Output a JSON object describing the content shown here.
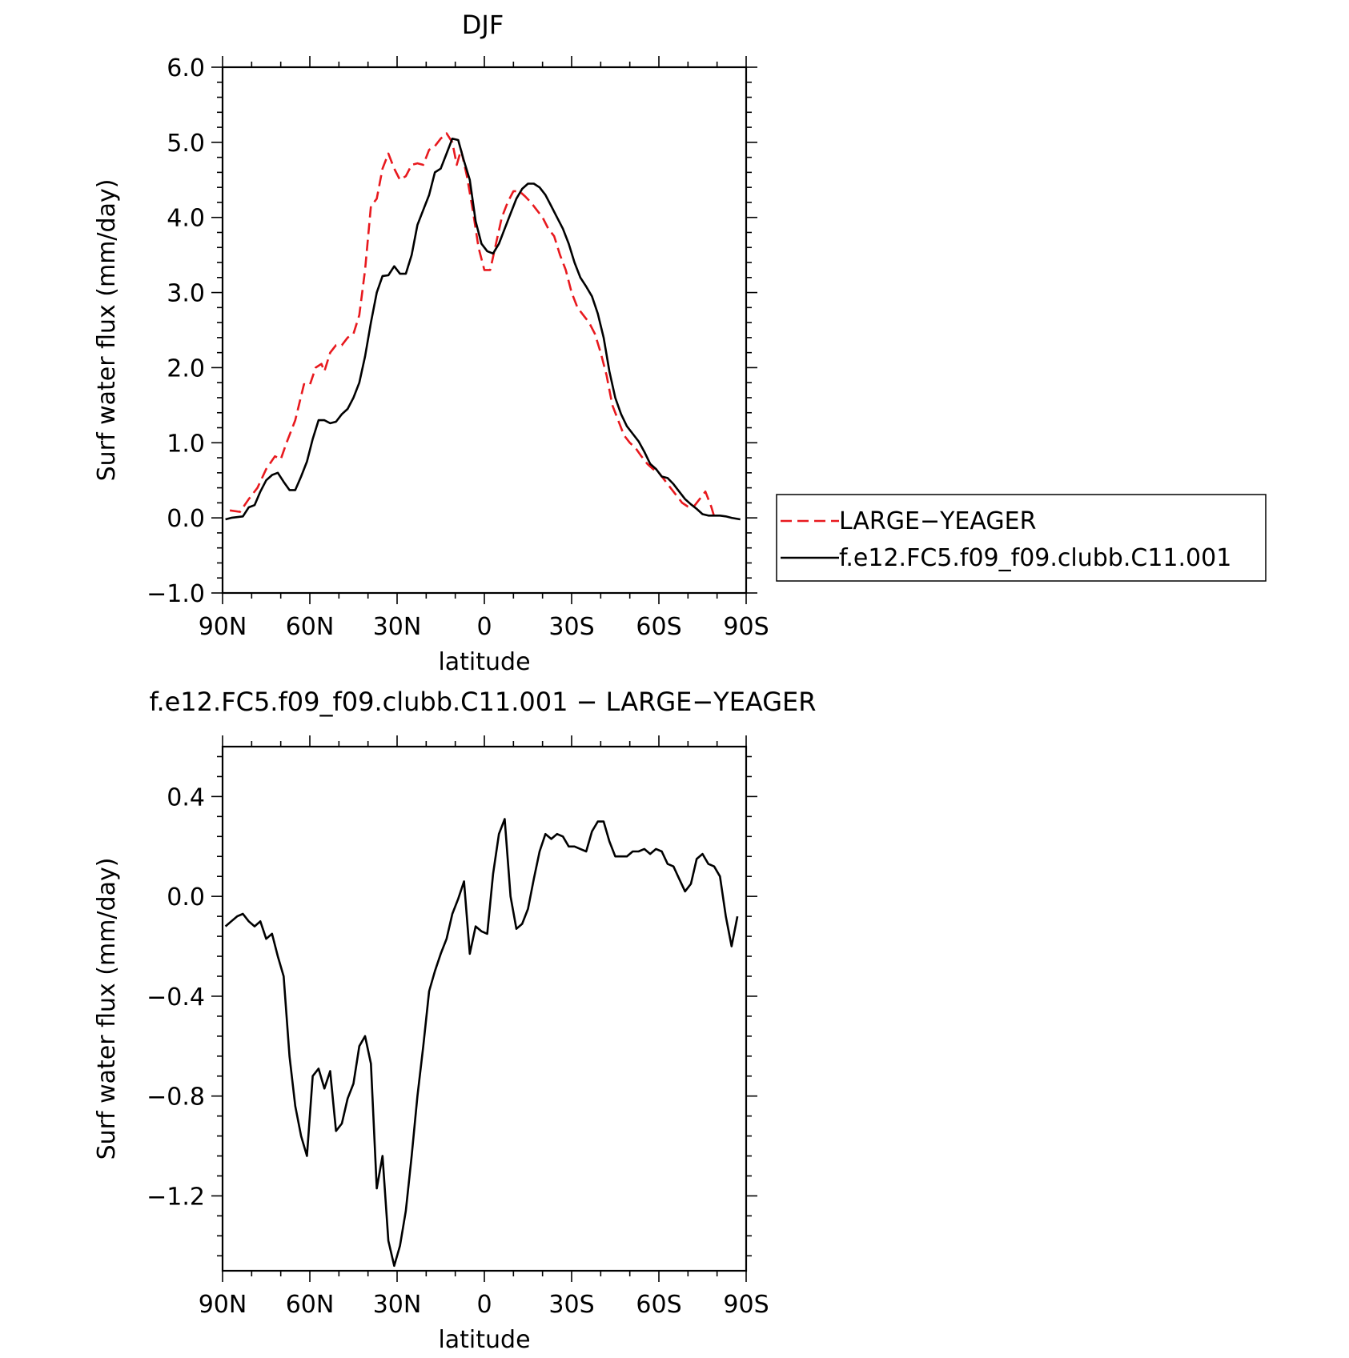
{
  "chart_data": [
    {
      "type": "line",
      "title": "DJF",
      "xlabel": "latitude",
      "ylabel": "Surf water flux (mm/day)",
      "xlim": [
        90,
        -90
      ],
      "ylim": [
        -1.0,
        6.0
      ],
      "x_ticks": [
        90,
        60,
        30,
        0,
        -30,
        -60,
        -90
      ],
      "x_tick_labels": [
        "90N",
        "60N",
        "30N",
        "0",
        "30S",
        "60S",
        "90S"
      ],
      "y_ticks": [
        -1,
        0,
        1,
        2,
        3,
        4,
        5,
        6
      ],
      "y_tick_labels": [
        "−1.0",
        "0.0",
        "1.0",
        "2.0",
        "3.0",
        "4.0",
        "5.0",
        "6.0"
      ],
      "legend_placement": "right",
      "series": [
        {
          "name": "LARGE−YEAGER",
          "color": "#e8191e",
          "dash": "dashed",
          "points": [
            [
              87.5,
              0.1
            ],
            [
              84,
              0.08
            ],
            [
              81,
              0.25
            ],
            [
              78,
              0.4
            ],
            [
              75,
              0.65
            ],
            [
              72,
              0.82
            ],
            [
              70,
              0.78
            ],
            [
              68,
              1.0
            ],
            [
              65,
              1.3
            ],
            [
              62,
              1.78
            ],
            [
              60,
              1.77
            ],
            [
              58,
              2.0
            ],
            [
              56,
              2.05
            ],
            [
              55,
              1.95
            ],
            [
              53,
              2.2
            ],
            [
              51,
              2.3
            ],
            [
              49,
              2.3
            ],
            [
              47,
              2.4
            ],
            [
              45,
              2.45
            ],
            [
              43,
              2.7
            ],
            [
              41,
              3.3
            ],
            [
              39,
              4.15
            ],
            [
              37,
              4.25
            ],
            [
              35,
              4.65
            ],
            [
              33,
              4.85
            ],
            [
              31,
              4.65
            ],
            [
              29,
              4.5
            ],
            [
              27,
              4.55
            ],
            [
              25,
              4.7
            ],
            [
              23,
              4.72
            ],
            [
              21,
              4.7
            ],
            [
              19,
              4.9
            ],
            [
              17,
              4.95
            ],
            [
              15,
              5.05
            ],
            [
              13,
              5.12
            ],
            [
              11,
              5.0
            ],
            [
              9.5,
              4.7
            ],
            [
              8,
              4.9
            ],
            [
              6,
              4.55
            ],
            [
              4,
              4.1
            ],
            [
              2,
              3.6
            ],
            [
              0,
              3.3
            ],
            [
              -2,
              3.3
            ],
            [
              -4,
              3.65
            ],
            [
              -6,
              4.0
            ],
            [
              -8,
              4.2
            ],
            [
              -10,
              4.35
            ],
            [
              -12,
              4.35
            ],
            [
              -14,
              4.28
            ],
            [
              -16,
              4.2
            ],
            [
              -18,
              4.1
            ],
            [
              -20,
              4.0
            ],
            [
              -22,
              3.85
            ],
            [
              -24,
              3.75
            ],
            [
              -26,
              3.5
            ],
            [
              -28,
              3.3
            ],
            [
              -30,
              3.0
            ],
            [
              -32,
              2.8
            ],
            [
              -34,
              2.7
            ],
            [
              -36,
              2.6
            ],
            [
              -38,
              2.45
            ],
            [
              -40,
              2.2
            ],
            [
              -42,
              1.9
            ],
            [
              -44,
              1.5
            ],
            [
              -46,
              1.3
            ],
            [
              -48,
              1.1
            ],
            [
              -50,
              1.0
            ],
            [
              -52,
              0.93
            ],
            [
              -54,
              0.82
            ],
            [
              -56,
              0.72
            ],
            [
              -58,
              0.65
            ],
            [
              -60,
              0.6
            ],
            [
              -62,
              0.5
            ],
            [
              -64,
              0.4
            ],
            [
              -66,
              0.3
            ],
            [
              -68,
              0.2
            ],
            [
              -70,
              0.15
            ],
            [
              -72,
              0.15
            ],
            [
              -74,
              0.25
            ],
            [
              -76,
              0.35
            ],
            [
              -78,
              0.15
            ],
            [
              -79,
              0.02
            ]
          ]
        },
        {
          "name": "f.e12.FC5.f09_f09.clubb.C11.001",
          "color": "#000000",
          "dash": "solid",
          "points": [
            [
              89,
              -0.02
            ],
            [
              87,
              0.0
            ],
            [
              85,
              0.01
            ],
            [
              83,
              0.02
            ],
            [
              81,
              0.14
            ],
            [
              79,
              0.17
            ],
            [
              77,
              0.35
            ],
            [
              75,
              0.5
            ],
            [
              73,
              0.57
            ],
            [
              71,
              0.6
            ],
            [
              69,
              0.48
            ],
            [
              67,
              0.37
            ],
            [
              65,
              0.37
            ],
            [
              63,
              0.55
            ],
            [
              61,
              0.75
            ],
            [
              59,
              1.05
            ],
            [
              57,
              1.3
            ],
            [
              55,
              1.3
            ],
            [
              53,
              1.26
            ],
            [
              51,
              1.28
            ],
            [
              49,
              1.38
            ],
            [
              47,
              1.45
            ],
            [
              45,
              1.6
            ],
            [
              43,
              1.8
            ],
            [
              41,
              2.15
            ],
            [
              39,
              2.6
            ],
            [
              37,
              3.0
            ],
            [
              35,
              3.22
            ],
            [
              33,
              3.23
            ],
            [
              31,
              3.35
            ],
            [
              29,
              3.25
            ],
            [
              27,
              3.25
            ],
            [
              25,
              3.5
            ],
            [
              23,
              3.9
            ],
            [
              21,
              4.1
            ],
            [
              19,
              4.3
            ],
            [
              17,
              4.6
            ],
            [
              15,
              4.65
            ],
            [
              13,
              4.85
            ],
            [
              11,
              5.05
            ],
            [
              9,
              5.03
            ],
            [
              7,
              4.75
            ],
            [
              5,
              4.5
            ],
            [
              3,
              3.95
            ],
            [
              1,
              3.65
            ],
            [
              -1,
              3.55
            ],
            [
              -3,
              3.52
            ],
            [
              -5,
              3.65
            ],
            [
              -7,
              3.85
            ],
            [
              -9,
              4.05
            ],
            [
              -11,
              4.25
            ],
            [
              -13,
              4.38
            ],
            [
              -15,
              4.45
            ],
            [
              -17,
              4.45
            ],
            [
              -19,
              4.4
            ],
            [
              -21,
              4.3
            ],
            [
              -23,
              4.15
            ],
            [
              -25,
              4.0
            ],
            [
              -27,
              3.85
            ],
            [
              -29,
              3.65
            ],
            [
              -31,
              3.4
            ],
            [
              -33,
              3.2
            ],
            [
              -35,
              3.08
            ],
            [
              -37,
              2.95
            ],
            [
              -39,
              2.72
            ],
            [
              -41,
              2.4
            ],
            [
              -43,
              1.95
            ],
            [
              -45,
              1.6
            ],
            [
              -47,
              1.38
            ],
            [
              -49,
              1.22
            ],
            [
              -51,
              1.12
            ],
            [
              -53,
              1.02
            ],
            [
              -55,
              0.88
            ],
            [
              -57,
              0.72
            ],
            [
              -59,
              0.65
            ],
            [
              -61,
              0.55
            ],
            [
              -63,
              0.53
            ],
            [
              -65,
              0.45
            ],
            [
              -67,
              0.35
            ],
            [
              -69,
              0.25
            ],
            [
              -71,
              0.18
            ],
            [
              -73,
              0.12
            ],
            [
              -75,
              0.05
            ],
            [
              -77,
              0.03
            ],
            [
              -79,
              0.03
            ],
            [
              -81,
              0.03
            ],
            [
              -83,
              0.02
            ],
            [
              -85,
              0.0
            ],
            [
              -88,
              -0.02
            ]
          ]
        }
      ]
    },
    {
      "type": "line",
      "title": "f.e12.FC5.f09_f09.clubb.C11.001 − LARGE−YEAGER",
      "xlabel": "latitude",
      "ylabel": "Surf water flux (mm/day)",
      "xlim": [
        90,
        -90
      ],
      "ylim": [
        -1.5,
        0.6
      ],
      "x_ticks": [
        90,
        60,
        30,
        0,
        -30,
        -60,
        -90
      ],
      "x_tick_labels": [
        "90N",
        "60N",
        "30N",
        "0",
        "30S",
        "60S",
        "90S"
      ],
      "y_ticks": [
        -1.2,
        -0.8,
        -0.4,
        0.0,
        0.4
      ],
      "y_tick_labels": [
        "−1.2",
        "−0.8",
        "−0.4",
        "0.0",
        "0.4"
      ],
      "series": [
        {
          "color": "#000000",
          "dash": "solid",
          "points": [
            [
              89,
              -0.12
            ],
            [
              87,
              -0.1
            ],
            [
              85,
              -0.08
            ],
            [
              83,
              -0.07
            ],
            [
              81,
              -0.1
            ],
            [
              79,
              -0.12
            ],
            [
              77,
              -0.1
            ],
            [
              75,
              -0.17
            ],
            [
              73,
              -0.15
            ],
            [
              71,
              -0.24
            ],
            [
              69,
              -0.32
            ],
            [
              67,
              -0.64
            ],
            [
              65,
              -0.84
            ],
            [
              63,
              -0.96
            ],
            [
              61,
              -1.04
            ],
            [
              59,
              -0.72
            ],
            [
              57,
              -0.69
            ],
            [
              55,
              -0.77
            ],
            [
              53,
              -0.7
            ],
            [
              51,
              -0.94
            ],
            [
              49,
              -0.91
            ],
            [
              47,
              -0.81
            ],
            [
              45,
              -0.75
            ],
            [
              43,
              -0.6
            ],
            [
              41,
              -0.56
            ],
            [
              39,
              -0.67
            ],
            [
              37,
              -1.17
            ],
            [
              35,
              -1.04
            ],
            [
              33,
              -1.38
            ],
            [
              31,
              -1.48
            ],
            [
              29,
              -1.4
            ],
            [
              27,
              -1.26
            ],
            [
              25,
              -1.04
            ],
            [
              23,
              -0.8
            ],
            [
              21,
              -0.6
            ],
            [
              19,
              -0.38
            ],
            [
              17,
              -0.3
            ],
            [
              15,
              -0.23
            ],
            [
              13,
              -0.17
            ],
            [
              11,
              -0.07
            ],
            [
              9,
              -0.01
            ],
            [
              7,
              0.06
            ],
            [
              5,
              -0.23
            ],
            [
              3,
              -0.12
            ],
            [
              1,
              -0.14
            ],
            [
              -1,
              -0.15
            ],
            [
              -3,
              0.09
            ],
            [
              -5,
              0.25
            ],
            [
              -7,
              0.31
            ],
            [
              -9,
              0.0
            ],
            [
              -11,
              -0.13
            ],
            [
              -13,
              -0.11
            ],
            [
              -15,
              -0.05
            ],
            [
              -17,
              0.07
            ],
            [
              -19,
              0.18
            ],
            [
              -21,
              0.25
            ],
            [
              -23,
              0.23
            ],
            [
              -25,
              0.25
            ],
            [
              -27,
              0.24
            ],
            [
              -29,
              0.2
            ],
            [
              -31,
              0.2
            ],
            [
              -33,
              0.19
            ],
            [
              -35,
              0.18
            ],
            [
              -37,
              0.26
            ],
            [
              -39,
              0.3
            ],
            [
              -41,
              0.3
            ],
            [
              -43,
              0.22
            ],
            [
              -45,
              0.16
            ],
            [
              -47,
              0.16
            ],
            [
              -49,
              0.16
            ],
            [
              -51,
              0.18
            ],
            [
              -53,
              0.18
            ],
            [
              -55,
              0.19
            ],
            [
              -57,
              0.17
            ],
            [
              -59,
              0.19
            ],
            [
              -61,
              0.18
            ],
            [
              -63,
              0.13
            ],
            [
              -65,
              0.12
            ],
            [
              -67,
              0.07
            ],
            [
              -69,
              0.02
            ],
            [
              -71,
              0.05
            ],
            [
              -73,
              0.15
            ],
            [
              -75,
              0.17
            ],
            [
              -77,
              0.13
            ],
            [
              -79,
              0.12
            ],
            [
              -81,
              0.08
            ],
            [
              -83,
              -0.08
            ],
            [
              -85,
              -0.2
            ],
            [
              -87,
              -0.08
            ]
          ]
        }
      ]
    }
  ]
}
